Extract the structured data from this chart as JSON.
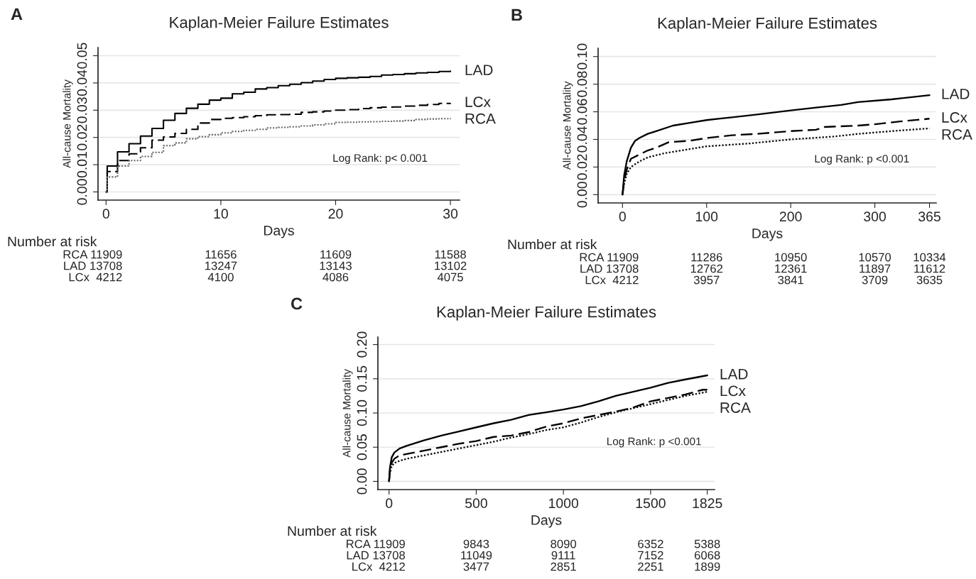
{
  "chart_data": [
    {
      "type": "step",
      "title": "Kaplan-Meier Failure Estimates",
      "xlabel": "Days",
      "ylabel": "All-cause Mortality",
      "xlim": [
        -0.7,
        30.8
      ],
      "xticks": [
        0,
        10,
        20,
        30
      ],
      "ylim": [
        -0.003,
        0.053
      ],
      "yticks": [
        {
          "value": 0,
          "label": "0.00"
        },
        {
          "value": 0.01,
          "label": "0.01"
        },
        {
          "value": 0.02,
          "label": "0.02"
        },
        {
          "value": 0.03,
          "label": "0.03"
        },
        {
          "value": 0.04,
          "label": "0.04"
        },
        {
          "value": 0.05,
          "label": "0.05"
        }
      ],
      "grid": "y",
      "legend": false,
      "series": [
        {
          "name": "LAD",
          "color": "#000000",
          "line_style": "solid",
          "x": [
            0,
            0.1,
            1,
            2,
            3,
            4,
            5,
            6,
            7,
            8,
            9,
            10,
            11,
            12,
            13,
            14,
            15,
            16,
            17,
            18,
            19,
            20,
            21,
            22,
            23,
            24,
            25,
            26,
            27,
            28,
            29,
            30
          ],
          "values": [
            0,
            0.0095,
            0.0147,
            0.0177,
            0.0205,
            0.0233,
            0.0263,
            0.0288,
            0.0307,
            0.0322,
            0.0337,
            0.0344,
            0.036,
            0.0366,
            0.0378,
            0.0383,
            0.039,
            0.0395,
            0.0401,
            0.0407,
            0.0413,
            0.0417,
            0.0419,
            0.0421,
            0.0424,
            0.0429,
            0.0431,
            0.0434,
            0.0437,
            0.0439,
            0.0442,
            0.0443
          ]
        },
        {
          "name": "LCx",
          "color": "#000000",
          "line_style": "dashed",
          "x": [
            0,
            0.1,
            1,
            2,
            3,
            4,
            5,
            6,
            7,
            8,
            9,
            10,
            11,
            12,
            13,
            14,
            15,
            16,
            17,
            18,
            19,
            20,
            21,
            22,
            23,
            24,
            25,
            26,
            27,
            28,
            29,
            30
          ],
          "values": [
            0,
            0.0075,
            0.0115,
            0.014,
            0.0162,
            0.019,
            0.0202,
            0.0215,
            0.023,
            0.0253,
            0.0266,
            0.027,
            0.0273,
            0.0276,
            0.028,
            0.0283,
            0.0284,
            0.0285,
            0.0292,
            0.0294,
            0.0297,
            0.03,
            0.0302,
            0.0306,
            0.0309,
            0.0311,
            0.0312,
            0.0315,
            0.0318,
            0.0321,
            0.0325,
            0.0326
          ]
        },
        {
          "name": "RCA",
          "color": "#666666",
          "line_style": "dotted",
          "x": [
            0,
            0.1,
            1,
            2,
            3,
            4,
            5,
            6,
            7,
            8,
            9,
            10,
            11,
            12,
            13,
            14,
            15,
            16,
            17,
            18,
            19,
            20,
            21,
            22,
            23,
            24,
            25,
            26,
            27,
            28,
            29,
            30
          ],
          "values": [
            0,
            0.0055,
            0.0095,
            0.0115,
            0.013,
            0.0145,
            0.017,
            0.018,
            0.0195,
            0.0203,
            0.021,
            0.0217,
            0.0222,
            0.0226,
            0.023,
            0.0235,
            0.0237,
            0.0239,
            0.0242,
            0.0246,
            0.025,
            0.0255,
            0.0256,
            0.0257,
            0.0258,
            0.0259,
            0.026,
            0.0262,
            0.0266,
            0.0268,
            0.0269,
            0.027
          ]
        }
      ],
      "annotations": [
        "A",
        "Log Rank: p< 0.001",
        "Number at risk",
        "RCA 11909",
        "11656",
        "11609",
        "11588",
        "LAD 13708",
        "13247",
        "13143",
        "13102",
        "LCx  4212",
        "4100",
        "4086",
        "4075"
      ]
    },
    {
      "type": "line",
      "title": "Kaplan-Meier Failure Estimates",
      "xlabel": "Days",
      "ylabel": "All-cause Mortality",
      "xlim": [
        -29,
        373
      ],
      "xticks": [
        0,
        100,
        200,
        300,
        365
      ],
      "ylim": [
        -0.006,
        0.106
      ],
      "yticks": [
        {
          "value": 0,
          "label": "0.00"
        },
        {
          "value": 0.02,
          "label": "0.02"
        },
        {
          "value": 0.04,
          "label": "0.04"
        },
        {
          "value": 0.06,
          "label": "0.06"
        },
        {
          "value": 0.08,
          "label": "0.08"
        },
        {
          "value": 0.1,
          "label": "0.10"
        }
      ],
      "grid": "y",
      "legend": false,
      "series": [
        {
          "name": "LAD",
          "color": "#000000",
          "line_style": "solid",
          "x": [
            0,
            2,
            5,
            10,
            15,
            20,
            30,
            40,
            60,
            80,
            100,
            130,
            160,
            200,
            230,
            260,
            280,
            320,
            365
          ],
          "values": [
            0,
            0.014,
            0.024,
            0.034,
            0.039,
            0.041,
            0.044,
            0.046,
            0.05,
            0.052,
            0.054,
            0.056,
            0.058,
            0.061,
            0.063,
            0.065,
            0.067,
            0.069,
            0.072
          ]
        },
        {
          "name": "LCx",
          "color": "#000000",
          "line_style": "dashed",
          "x": [
            0,
            2,
            5,
            10,
            20,
            30,
            40,
            55,
            80,
            100,
            130,
            160,
            200,
            230,
            240,
            280,
            300,
            330,
            365
          ],
          "values": [
            0,
            0.01,
            0.018,
            0.026,
            0.029,
            0.032,
            0.034,
            0.038,
            0.039,
            0.041,
            0.043,
            0.044,
            0.046,
            0.047,
            0.049,
            0.05,
            0.051,
            0.053,
            0.055
          ]
        },
        {
          "name": "RCA",
          "color": "#111111",
          "line_style": "dotted",
          "x": [
            0,
            2,
            5,
            10,
            20,
            30,
            50,
            80,
            100,
            150,
            200,
            250,
            280,
            320,
            365
          ],
          "values": [
            0,
            0.008,
            0.015,
            0.02,
            0.024,
            0.027,
            0.03,
            0.033,
            0.035,
            0.037,
            0.04,
            0.042,
            0.044,
            0.046,
            0.048
          ]
        }
      ],
      "annotations": [
        "B",
        "Log Rank: p <0.001",
        "Number at risk",
        "RCA 11909",
        "11286",
        "10950",
        "10570",
        "10334",
        "LAD 13708",
        "12762",
        "12361",
        "11897",
        "11612",
        "LCx  4212",
        "3957",
        "3841",
        "3709",
        "3635"
      ]
    },
    {
      "type": "line",
      "title": "Kaplan-Meier Failure Estimates",
      "xlabel": "Days",
      "ylabel": "All-cause Mortality",
      "xlim": [
        -64,
        1867
      ],
      "xticks": [
        0,
        500,
        1000,
        1500,
        1825
      ],
      "ylim": [
        -0.012,
        0.211
      ],
      "yticks": [
        {
          "value": 0,
          "label": "0.00"
        },
        {
          "value": 0.05,
          "label": "0.05"
        },
        {
          "value": 0.1,
          "label": "0.10"
        },
        {
          "value": 0.15,
          "label": "0.15"
        },
        {
          "value": 0.2,
          "label": "0.20"
        }
      ],
      "grid": "y",
      "legend": false,
      "series": [
        {
          "name": "LAD",
          "color": "#000000",
          "line_style": "solid",
          "x": [
            0,
            5,
            15,
            30,
            60,
            100,
            200,
            300,
            400,
            500,
            600,
            700,
            800,
            900,
            1000,
            1100,
            1200,
            1300,
            1400,
            1500,
            1600,
            1700,
            1825
          ],
          "values": [
            0,
            0.02,
            0.035,
            0.042,
            0.048,
            0.052,
            0.06,
            0.067,
            0.073,
            0.079,
            0.085,
            0.09,
            0.097,
            0.101,
            0.105,
            0.11,
            0.117,
            0.125,
            0.131,
            0.137,
            0.144,
            0.149,
            0.155
          ]
        },
        {
          "name": "LCx",
          "color": "#000000",
          "line_style": "dashed",
          "x": [
            0,
            5,
            15,
            30,
            60,
            100,
            200,
            300,
            400,
            500,
            600,
            700,
            800,
            900,
            1000,
            1100,
            1200,
            1300,
            1400,
            1500,
            1600,
            1700,
            1800,
            1825
          ],
          "values": [
            0,
            0.015,
            0.027,
            0.033,
            0.038,
            0.04,
            0.045,
            0.05,
            0.055,
            0.059,
            0.065,
            0.067,
            0.072,
            0.08,
            0.085,
            0.092,
            0.097,
            0.102,
            0.108,
            0.117,
            0.122,
            0.127,
            0.134,
            0.134
          ]
        },
        {
          "name": "RCA",
          "color": "#111111",
          "line_style": "dotted",
          "x": [
            0,
            5,
            15,
            30,
            60,
            100,
            200,
            300,
            400,
            500,
            600,
            700,
            800,
            900,
            1000,
            1100,
            1200,
            1300,
            1400,
            1500,
            1600,
            1700,
            1825
          ],
          "values": [
            0,
            0.012,
            0.022,
            0.027,
            0.03,
            0.033,
            0.038,
            0.043,
            0.048,
            0.053,
            0.058,
            0.064,
            0.069,
            0.075,
            0.079,
            0.086,
            0.094,
            0.101,
            0.107,
            0.113,
            0.119,
            0.125,
            0.131
          ]
        }
      ],
      "annotations": [
        "C",
        "Log Rank: p <0.001",
        "Number at risk",
        "RCA 11909",
        "9843",
        "8090",
        "6352",
        "5388",
        "LAD 13708",
        "11049",
        "9111",
        "7152",
        "6068",
        "LCx  4212",
        "3477",
        "2851",
        "2251",
        "1899"
      ]
    }
  ]
}
